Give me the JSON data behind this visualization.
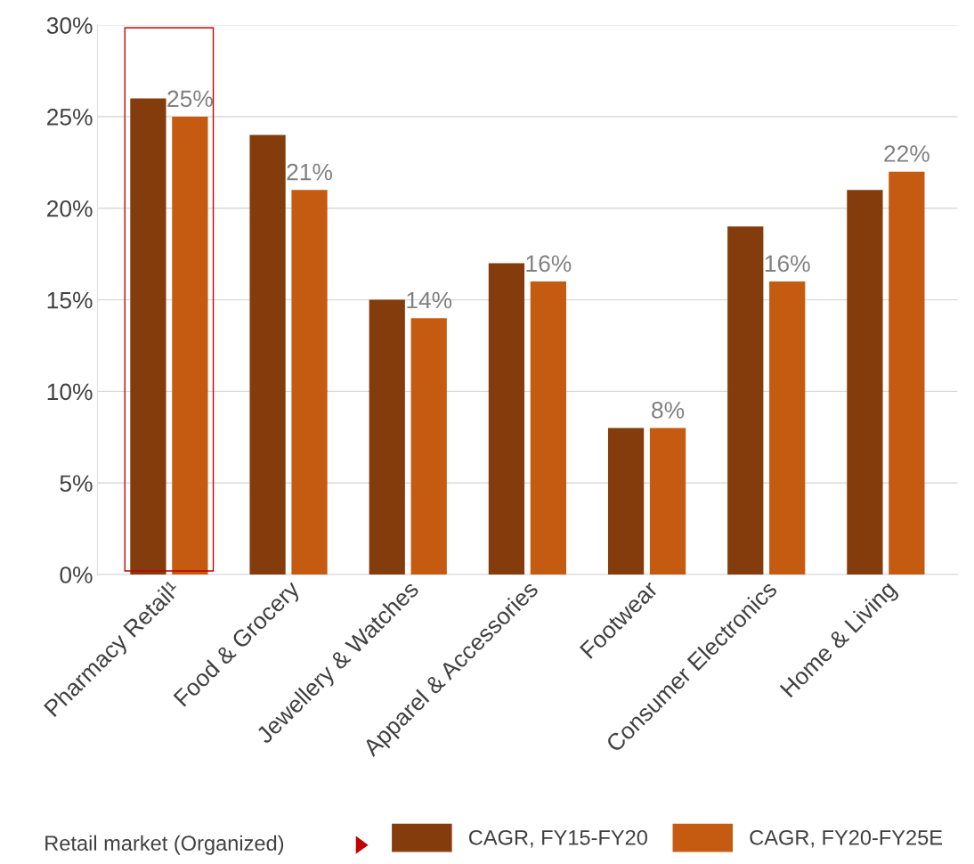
{
  "chart_data": {
    "type": "bar",
    "categories": [
      "Pharmacy Retail¹",
      "Food & Grocery",
      "Jewellery & Watches",
      "Apparel & Accessories",
      "Footwear",
      "Consumer Electronics",
      "Home & Living"
    ],
    "series": [
      {
        "name": "CAGR, FY15-FY20",
        "color": "#843c0c",
        "values": [
          26,
          24,
          15,
          17,
          8,
          19,
          21
        ]
      },
      {
        "name": "CAGR, FY20-FY25E",
        "color": "#c55a11",
        "values": [
          25,
          21,
          14,
          16,
          8,
          16,
          22
        ],
        "value_labels": [
          "25%",
          "21%",
          "14%",
          "16%",
          "8%",
          "16%",
          "22%"
        ]
      }
    ],
    "ylim": [
      0,
      30
    ],
    "yticks": [
      {
        "value": 0,
        "label": "0%"
      },
      {
        "value": 5,
        "label": "5%"
      },
      {
        "value": 10,
        "label": "10%"
      },
      {
        "value": 15,
        "label": "15%"
      },
      {
        "value": 20,
        "label": "20%"
      },
      {
        "value": 25,
        "label": "25%"
      },
      {
        "value": 30,
        "label": "30%"
      }
    ],
    "grid": "y",
    "legend": "bottom",
    "legend_title": "Retail market (Organized)"
  }
}
